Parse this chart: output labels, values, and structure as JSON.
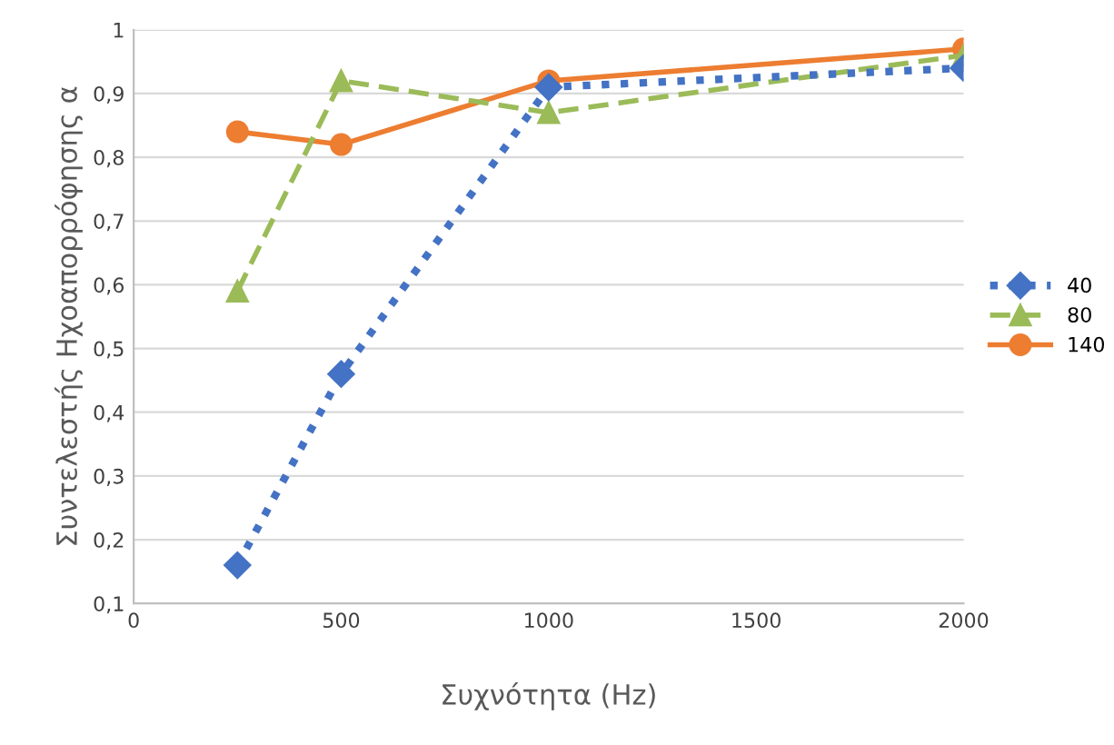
{
  "chart_data": {
    "type": "line",
    "xlabel": "Συχνότητα (Hz)",
    "ylabel": "Συντελεστής Ηχοαπορρόφησης α",
    "x": [
      250,
      500,
      1000,
      2000
    ],
    "series": [
      {
        "name": "40",
        "color": "#4472c4",
        "values": [
          0.16,
          0.46,
          0.91,
          0.94
        ],
        "marker": "diamond",
        "line_style": "dotted"
      },
      {
        "name": "80",
        "color": "#9bbb59",
        "values": [
          0.59,
          0.92,
          0.87,
          0.96
        ],
        "marker": "triangle",
        "line_style": "dashed"
      },
      {
        "name": "140",
        "color": "#ed7d31",
        "values": [
          0.84,
          0.82,
          0.92,
          0.97
        ],
        "marker": "circle",
        "line_style": "solid"
      }
    ],
    "xlim": [
      0,
      2000
    ],
    "xticks": [
      0,
      500,
      1000,
      1500,
      2000
    ],
    "ylim": [
      0.1,
      1
    ],
    "yticks": [
      {
        "value": 0.1,
        "label": "0,1"
      },
      {
        "value": 0.2,
        "label": "0,2"
      },
      {
        "value": 0.3,
        "label": "0,3"
      },
      {
        "value": 0.4,
        "label": "0,4"
      },
      {
        "value": 0.5,
        "label": "0,5"
      },
      {
        "value": 0.6,
        "label": "0,6"
      },
      {
        "value": 0.7,
        "label": "0,7"
      },
      {
        "value": 0.8,
        "label": "0,8"
      },
      {
        "value": 0.9,
        "label": "0,9"
      },
      {
        "value": 1,
        "label": "1"
      }
    ],
    "grid": "y",
    "legend": "right"
  }
}
